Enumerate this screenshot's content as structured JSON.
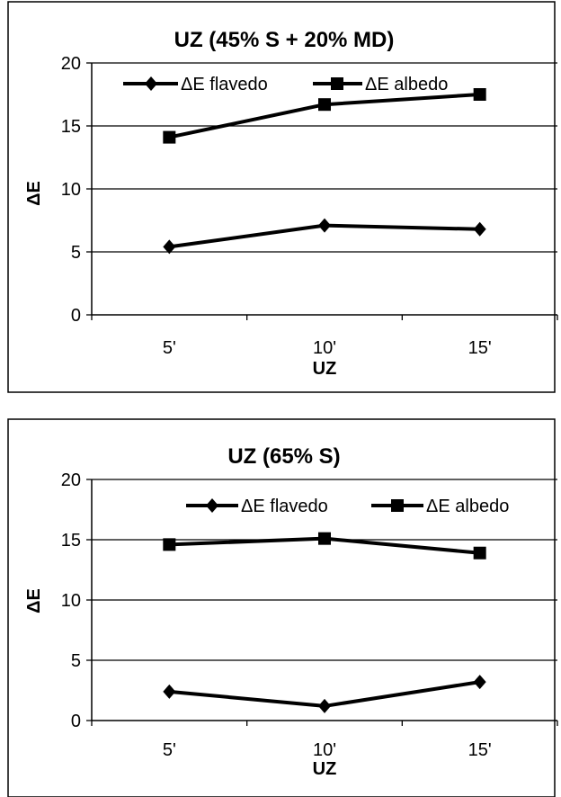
{
  "chart_data": [
    {
      "type": "line",
      "title": "UZ (45% S + 20% MD)",
      "xlabel": "UZ",
      "ylabel": "ΔE",
      "categories": [
        "5'",
        "10'",
        "15'"
      ],
      "ylim": [
        0,
        20
      ],
      "yticks": [
        0,
        5,
        10,
        15,
        20
      ],
      "grid": true,
      "legend": "top",
      "series": [
        {
          "name": "ΔE flavedo",
          "marker": "diamond",
          "values": [
            5.4,
            7.1,
            6.8
          ]
        },
        {
          "name": "ΔE albedo",
          "marker": "square",
          "values": [
            14.1,
            16.7,
            17.5
          ]
        }
      ]
    },
    {
      "type": "line",
      "title": "UZ (65% S)",
      "xlabel": "UZ",
      "ylabel": "ΔE",
      "categories": [
        "5'",
        "10'",
        "15'"
      ],
      "ylim": [
        0,
        20
      ],
      "yticks": [
        0,
        5,
        10,
        15,
        20
      ],
      "grid": true,
      "legend": "top-right",
      "series": [
        {
          "name": "ΔE flavedo",
          "marker": "diamond",
          "values": [
            2.4,
            1.2,
            3.2
          ]
        },
        {
          "name": "ΔE albedo",
          "marker": "square",
          "values": [
            14.6,
            15.1,
            13.9
          ]
        }
      ]
    }
  ]
}
